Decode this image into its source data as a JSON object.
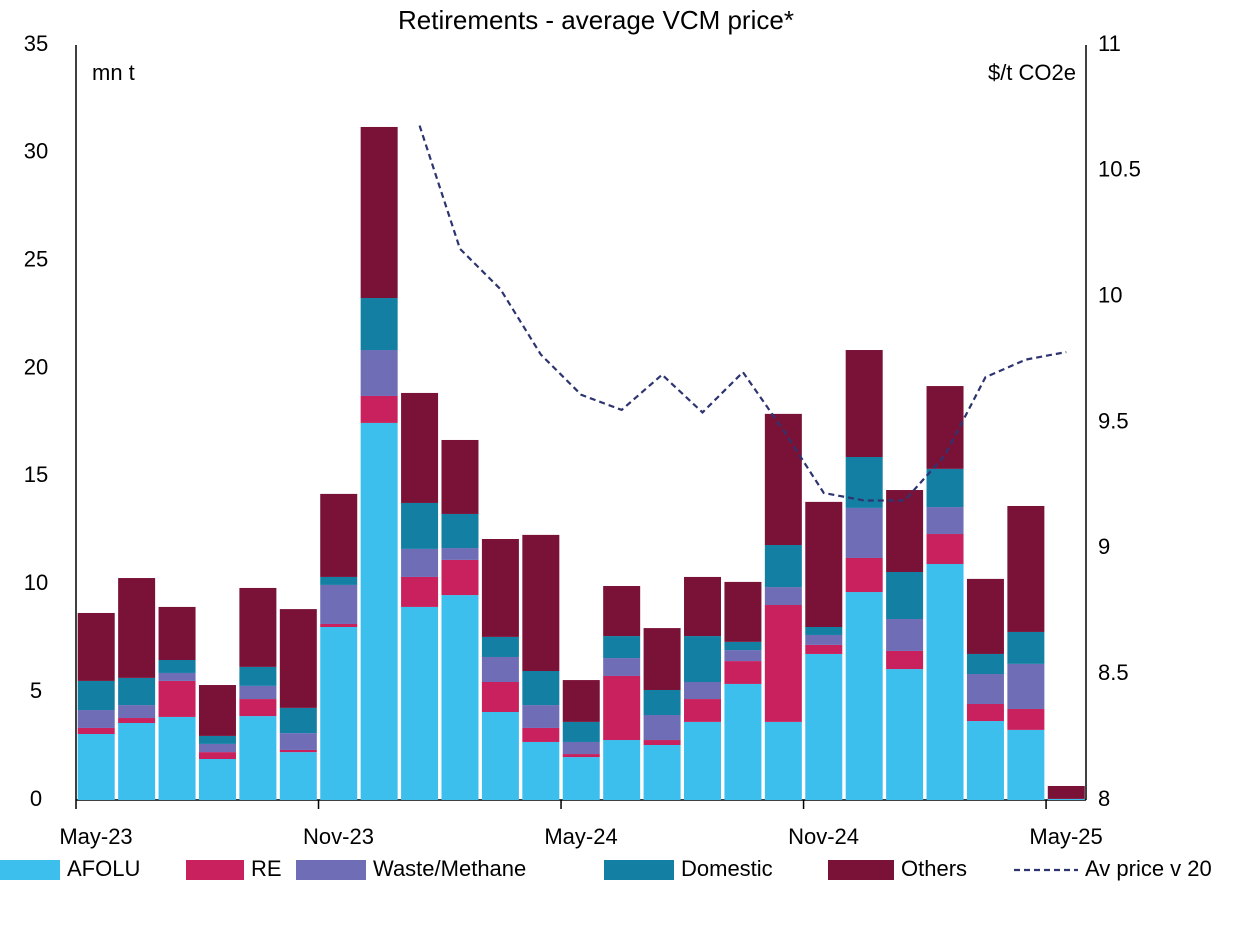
{
  "chart_data": {
    "type": "bar",
    "stacked": true,
    "title": "Retirements - average VCM price*",
    "y_label": "mn t",
    "y2_label": "$/t CO2e",
    "categories": [
      "May-23",
      null,
      null,
      null,
      null,
      null,
      "Nov-23",
      null,
      null,
      null,
      null,
      null,
      "May-24",
      null,
      null,
      null,
      null,
      null,
      "Nov-24",
      null,
      null,
      null,
      null,
      null,
      "May-25"
    ],
    "ylim": [
      0,
      35
    ],
    "yticks": [
      0,
      5,
      10,
      15,
      20,
      25,
      30,
      35
    ],
    "y2lim": [
      8,
      11
    ],
    "y2ticks": [
      8,
      8.5,
      9,
      9.5,
      10,
      10.5,
      11
    ],
    "series": [
      {
        "name": "AFOLU",
        "color": "#3dbfee",
        "values": [
          3.06,
          3.57,
          3.85,
          1.9,
          3.89,
          2.22,
          8.02,
          17.48,
          8.95,
          9.5,
          4.08,
          2.69,
          1.99,
          2.78,
          2.55,
          3.62,
          5.38,
          3.62,
          6.77,
          9.64,
          6.07,
          10.94,
          3.66,
          3.25,
          0.05
        ]
      },
      {
        "name": "RE",
        "color": "#c8215e",
        "values": [
          0.28,
          0.23,
          1.67,
          0.32,
          0.79,
          0.1,
          0.14,
          1.25,
          1.39,
          1.63,
          1.39,
          0.65,
          0.14,
          2.97,
          0.23,
          1.06,
          1.06,
          5.42,
          0.42,
          1.58,
          0.84,
          1.39,
          0.79,
          0.97,
          0
        ]
      },
      {
        "name": "Waste/Methane",
        "color": "#6e6db5",
        "values": [
          0.83,
          0.6,
          0.37,
          0.38,
          0.61,
          0.78,
          1.81,
          2.13,
          1.3,
          0.55,
          1.16,
          1.06,
          0.56,
          0.83,
          1.16,
          0.79,
          0.51,
          0.83,
          0.46,
          2.32,
          1.48,
          1.25,
          1.39,
          2.09,
          0
        ]
      },
      {
        "name": "Domestic",
        "color": "#137fa3",
        "values": [
          1.35,
          1.26,
          0.6,
          0.37,
          0.88,
          1.17,
          0.37,
          2.41,
          2.13,
          1.58,
          0.93,
          1.58,
          0.93,
          1.02,
          1.16,
          2.13,
          0.38,
          1.95,
          0.37,
          2.36,
          2.18,
          1.77,
          0.93,
          1.48,
          0
        ]
      },
      {
        "name": "Others",
        "color": "#7a1238",
        "values": [
          3.15,
          4.63,
          2.46,
          2.36,
          3.66,
          4.58,
          3.85,
          7.93,
          5.1,
          3.43,
          4.54,
          6.31,
          1.94,
          2.32,
          2.87,
          2.74,
          2.78,
          6.08,
          5.8,
          4.96,
          3.8,
          3.84,
          3.48,
          5.84,
          0.6
        ]
      },
      {
        "name": "Av price v 20",
        "type": "line",
        "axis": "y2",
        "color": "#2d3470",
        "dashed": true,
        "values": [
          null,
          null,
          null,
          null,
          null,
          null,
          null,
          null,
          10.68,
          10.19,
          10.03,
          9.77,
          9.61,
          9.55,
          9.69,
          9.54,
          9.7,
          9.47,
          9.22,
          9.19,
          9.19,
          9.37,
          9.68,
          9.75,
          9.78
        ]
      }
    ]
  }
}
